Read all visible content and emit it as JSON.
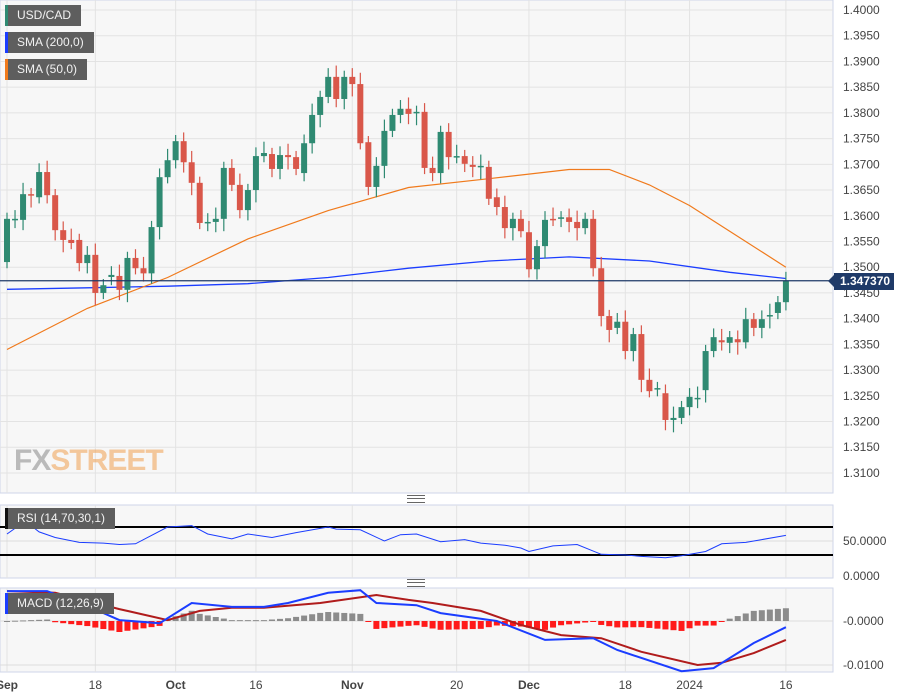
{
  "legend": {
    "symbol": "USD/CAD",
    "sma200": "SMA (200,0)",
    "sma50": "SMA (50,0)",
    "rsi": "RSI (14,70,30,1)",
    "macd": "MACD (12,26,9)"
  },
  "current_price": "1.347370",
  "watermark": {
    "fx": "FX",
    "street": "STREET"
  },
  "colors": {
    "up": "#2f8a72",
    "down": "#d9574a",
    "sma200": "#1b3dff",
    "sma50": "#f07a1c",
    "price_line": "#1f3a68",
    "rsi": "#1b3dff",
    "macd": "#1b3dff",
    "signal": "#b01c1c",
    "hist_pos": "#8c8c8c",
    "hist_neg": "#ff1a1a"
  },
  "chart_data": {
    "type": "candlestick",
    "title": "USD/CAD",
    "price_axis": {
      "ylim": [
        1.305,
        1.402
      ],
      "ticks": [
        "1.4000",
        "1.3950",
        "1.3900",
        "1.3850",
        "1.3800",
        "1.3750",
        "1.3700",
        "1.3650",
        "1.3600",
        "1.3550",
        "1.3500",
        "1.3450",
        "1.3400",
        "1.3350",
        "1.3300",
        "1.3250",
        "1.3200",
        "1.3150",
        "1.3100"
      ]
    },
    "x_ticks": [
      {
        "label": "Sep",
        "i": 0
      },
      {
        "label": "18",
        "i": 11
      },
      {
        "label": "Oct",
        "i": 21
      },
      {
        "label": "16",
        "i": 31
      },
      {
        "label": "Nov",
        "i": 43
      },
      {
        "label": "20",
        "i": 56
      },
      {
        "label": "Dec",
        "i": 65
      },
      {
        "label": "18",
        "i": 77
      },
      {
        "label": "2024",
        "i": 85
      },
      {
        "label": "16",
        "i": 97
      }
    ],
    "candles_oc": [
      [
        1.351,
        1.3594
      ],
      [
        1.3592,
        1.3594
      ],
      [
        1.3592,
        1.3642
      ],
      [
        1.3642,
        1.364
      ],
      [
        1.3636,
        1.3685
      ],
      [
        1.3685,
        1.364
      ],
      [
        1.364,
        1.3572
      ],
      [
        1.3572,
        1.3553
      ],
      [
        1.3553,
        1.3547
      ],
      [
        1.3553,
        1.3508
      ],
      [
        1.3508,
        1.3524
      ],
      [
        1.3524,
        1.345
      ],
      [
        1.345,
        1.3465
      ],
      [
        1.3481,
        1.3485
      ],
      [
        1.3483,
        1.3456
      ],
      [
        1.3456,
        1.3518
      ],
      [
        1.3518,
        1.3498
      ],
      [
        1.3498,
        1.3488
      ],
      [
        1.3488,
        1.3578
      ],
      [
        1.3578,
        1.3675
      ],
      [
        1.3675,
        1.3708
      ],
      [
        1.3708,
        1.3745
      ],
      [
        1.3745,
        1.3704
      ],
      [
        1.3704,
        1.3664
      ],
      [
        1.3664,
        1.3586
      ],
      [
        1.3586,
        1.3588
      ],
      [
        1.3588,
        1.3594
      ],
      [
        1.3594,
        1.3693
      ],
      [
        1.3693,
        1.366
      ],
      [
        1.366,
        1.3611
      ],
      [
        1.3611,
        1.365
      ],
      [
        1.365,
        1.3716
      ],
      [
        1.3716,
        1.3722
      ],
      [
        1.372,
        1.3691
      ],
      [
        1.3691,
        1.3718
      ],
      [
        1.3718,
        1.3714
      ],
      [
        1.3714,
        1.3691
      ],
      [
        1.3683,
        1.3741
      ],
      [
        1.3741,
        1.3796
      ],
      [
        1.3796,
        1.3831
      ],
      [
        1.3831,
        1.387
      ],
      [
        1.387,
        1.3827
      ],
      [
        1.3827,
        1.387
      ],
      [
        1.387,
        1.3856
      ],
      [
        1.3856,
        1.3741
      ],
      [
        1.3743,
        1.3656
      ],
      [
        1.3656,
        1.3697
      ],
      [
        1.3697,
        1.3765
      ],
      [
        1.3765,
        1.3796
      ],
      [
        1.3796,
        1.3808
      ],
      [
        1.3808,
        1.3798
      ],
      [
        1.38,
        1.3802
      ],
      [
        1.3802,
        1.3693
      ],
      [
        1.3693,
        1.3683
      ],
      [
        1.3683,
        1.3763
      ],
      [
        1.3763,
        1.3714
      ],
      [
        1.3714,
        1.3716
      ],
      [
        1.3716,
        1.3701
      ],
      [
        1.3699,
        1.3695
      ],
      [
        1.3695,
        1.3697
      ],
      [
        1.3695,
        1.3633
      ],
      [
        1.3636,
        1.3617
      ],
      [
        1.3617,
        1.3576
      ],
      [
        1.3576,
        1.3594
      ],
      [
        1.3594,
        1.357
      ],
      [
        1.3568,
        1.3496
      ],
      [
        1.3496,
        1.3541
      ],
      [
        1.3541,
        1.3592
      ],
      [
        1.3594,
        1.3592
      ],
      [
        1.3594,
        1.3597
      ],
      [
        1.3597,
        1.3588
      ],
      [
        1.3588,
        1.3576
      ],
      [
        1.3576,
        1.3594
      ],
      [
        1.3594,
        1.3498
      ],
      [
        1.3498,
        1.3405
      ],
      [
        1.3405,
        1.3378
      ],
      [
        1.3382,
        1.3394
      ],
      [
        1.3394,
        1.3337
      ],
      [
        1.3337,
        1.337
      ],
      [
        1.337,
        1.3281
      ],
      [
        1.3281,
        1.3259
      ],
      [
        1.3265,
        1.3265
      ],
      [
        1.3255,
        1.3203
      ],
      [
        1.3203,
        1.3207
      ],
      [
        1.3207,
        1.3228
      ],
      [
        1.3228,
        1.3248
      ],
      [
        1.3246,
        1.3246
      ],
      [
        1.3261,
        1.3337
      ],
      [
        1.3337,
        1.3364
      ],
      [
        1.3358,
        1.3354
      ],
      [
        1.3353,
        1.3364
      ],
      [
        1.336,
        1.3354
      ],
      [
        1.3354,
        1.3399
      ],
      [
        1.3399,
        1.3382
      ],
      [
        1.3382,
        1.3399
      ],
      [
        1.3405,
        1.3407
      ],
      [
        1.3411,
        1.3432
      ],
      [
        1.3432,
        1.3474
      ]
    ],
    "sma200": [
      [
        0,
        1.3457
      ],
      [
        10,
        1.346
      ],
      [
        20,
        1.3463
      ],
      [
        30,
        1.3468
      ],
      [
        40,
        1.348
      ],
      [
        50,
        1.3498
      ],
      [
        60,
        1.3512
      ],
      [
        70,
        1.352
      ],
      [
        80,
        1.3512
      ],
      [
        90,
        1.349
      ],
      [
        97,
        1.3478
      ]
    ],
    "sma50": [
      [
        0,
        1.334
      ],
      [
        10,
        1.342
      ],
      [
        20,
        1.348
      ],
      [
        30,
        1.3555
      ],
      [
        40,
        1.361
      ],
      [
        50,
        1.3655
      ],
      [
        60,
        1.3672
      ],
      [
        70,
        1.369
      ],
      [
        75,
        1.369
      ],
      [
        80,
        1.366
      ],
      [
        85,
        1.362
      ],
      [
        90,
        1.357
      ],
      [
        97,
        1.35
      ]
    ],
    "rsi": {
      "ticks": [
        "50.0000",
        "0.0000"
      ],
      "levels": [
        70,
        30
      ],
      "values": [
        [
          0,
          60
        ],
        [
          1,
          68
        ],
        [
          3,
          72
        ],
        [
          4,
          63
        ],
        [
          6,
          55
        ],
        [
          9,
          48
        ],
        [
          12,
          47
        ],
        [
          14,
          45
        ],
        [
          16,
          46
        ],
        [
          20,
          70
        ],
        [
          23,
          72
        ],
        [
          25,
          60
        ],
        [
          28,
          53
        ],
        [
          30,
          60
        ],
        [
          33,
          55
        ],
        [
          36,
          62
        ],
        [
          40,
          70
        ],
        [
          41,
          67
        ],
        [
          44,
          66
        ],
        [
          47,
          50
        ],
        [
          49,
          59
        ],
        [
          51,
          60
        ],
        [
          54,
          49
        ],
        [
          57,
          52
        ],
        [
          59,
          47
        ],
        [
          62,
          44
        ],
        [
          64,
          40
        ],
        [
          65,
          35
        ],
        [
          68,
          43
        ],
        [
          71,
          45
        ],
        [
          74,
          31
        ],
        [
          77,
          30
        ],
        [
          79,
          28
        ],
        [
          82,
          26
        ],
        [
          84,
          29
        ],
        [
          87,
          35
        ],
        [
          89,
          46
        ],
        [
          92,
          48
        ],
        [
          94,
          52
        ],
        [
          97,
          58
        ]
      ]
    },
    "macd": {
      "ticks": [
        "-0.0000",
        "-0.0100"
      ],
      "macd": [
        [
          0,
          0.0068
        ],
        [
          5,
          0.0068
        ],
        [
          10,
          0.0034
        ],
        [
          14,
          0.0002
        ],
        [
          19,
          -0.0005
        ],
        [
          23,
          0.0041
        ],
        [
          28,
          0.0032
        ],
        [
          32,
          0.0032
        ],
        [
          35,
          0.0041
        ],
        [
          40,
          0.0064
        ],
        [
          44,
          0.007
        ],
        [
          46,
          0.0041
        ],
        [
          51,
          0.0036
        ],
        [
          54,
          0.0018
        ],
        [
          61,
          0.0
        ],
        [
          67,
          -0.0043
        ],
        [
          73,
          -0.0039
        ],
        [
          76,
          -0.0066
        ],
        [
          84,
          -0.0114
        ],
        [
          88,
          -0.0107
        ],
        [
          93,
          -0.005
        ],
        [
          97,
          -0.0014
        ]
      ],
      "signal": [
        [
          0,
          0.0068
        ],
        [
          6,
          0.0064
        ],
        [
          14,
          0.0027
        ],
        [
          20,
          0.0002
        ],
        [
          24,
          0.0023
        ],
        [
          28,
          0.003
        ],
        [
          32,
          0.003
        ],
        [
          39,
          0.0041
        ],
        [
          46,
          0.0059
        ],
        [
          50,
          0.0048
        ],
        [
          53,
          0.0041
        ],
        [
          59,
          0.0023
        ],
        [
          64,
          -0.0009
        ],
        [
          69,
          -0.0032
        ],
        [
          74,
          -0.0039
        ],
        [
          79,
          -0.007
        ],
        [
          86,
          -0.01
        ],
        [
          89,
          -0.0095
        ],
        [
          93,
          -0.0073
        ],
        [
          97,
          -0.0043
        ]
      ]
    }
  }
}
